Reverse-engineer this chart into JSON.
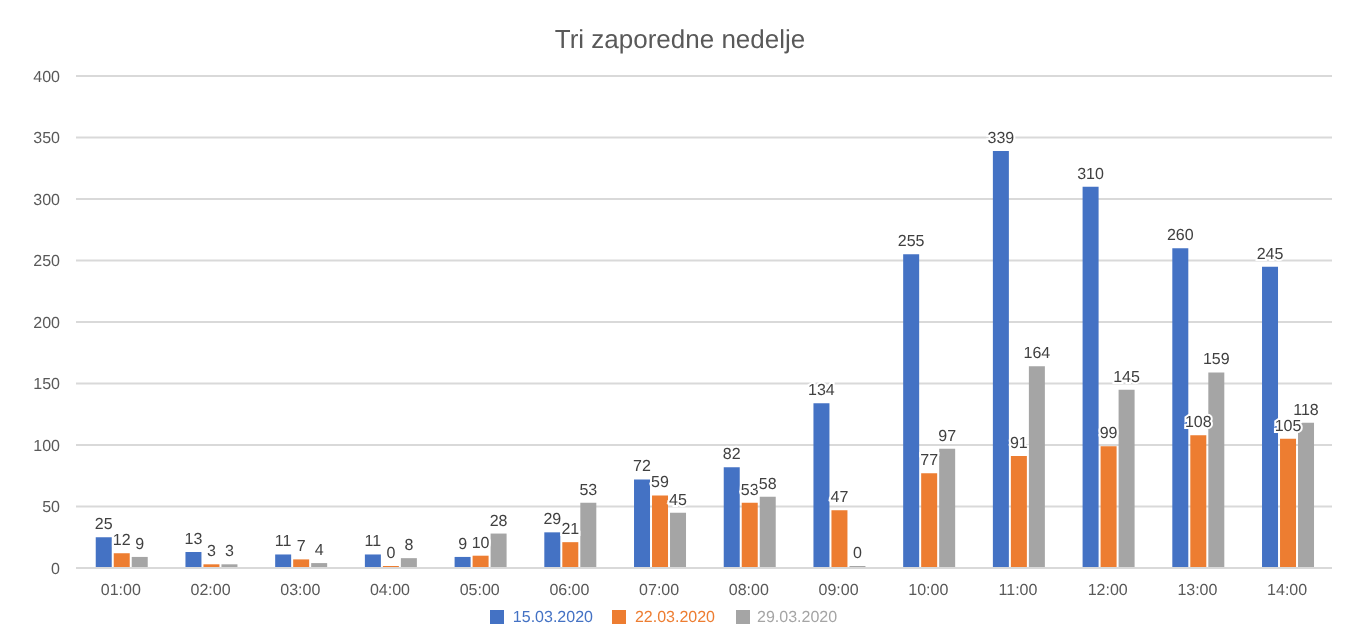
{
  "chart_data": {
    "type": "bar",
    "title": "Tri zaporedne nedelje",
    "categories": [
      "01:00",
      "02:00",
      "03:00",
      "04:00",
      "05:00",
      "06:00",
      "07:00",
      "08:00",
      "09:00",
      "10:00",
      "11:00",
      "12:00",
      "13:00",
      "14:00"
    ],
    "series": [
      {
        "name": "15.03.2020",
        "color": "#4472c4",
        "values": [
          25,
          13,
          11,
          11,
          9,
          29,
          72,
          82,
          134,
          255,
          339,
          310,
          260,
          245
        ]
      },
      {
        "name": "22.03.2020",
        "color": "#ed7d31",
        "values": [
          12,
          3,
          7,
          0,
          10,
          21,
          59,
          53,
          47,
          77,
          91,
          99,
          108,
          105
        ]
      },
      {
        "name": "29.03.2020",
        "color": "#a5a5a5",
        "values": [
          9,
          3,
          4,
          8,
          28,
          53,
          45,
          58,
          0,
          97,
          164,
          145,
          159,
          118
        ]
      }
    ],
    "ylim": [
      0,
      400
    ],
    "yticks": [
      0,
      50,
      100,
      150,
      200,
      250,
      300,
      350,
      400
    ],
    "grid": "y",
    "legend": "bottom",
    "data_labels": true
  }
}
